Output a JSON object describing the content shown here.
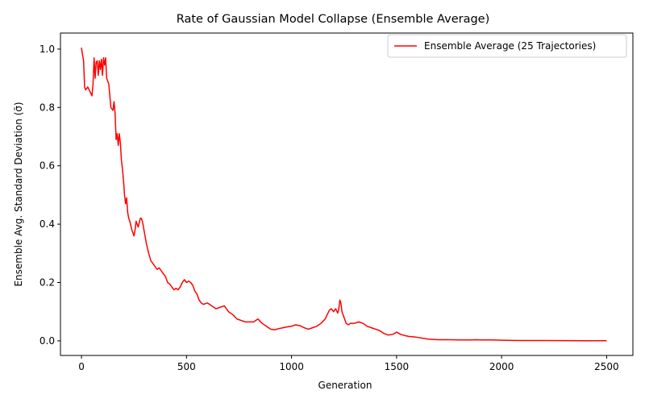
{
  "chart_data": {
    "type": "line",
    "title": "Rate of Gaussian Model Collapse (Ensemble Average)",
    "xlabel": "Generation",
    "ylabel": "Ensemble Avg. Standard Deviation (σ̄)",
    "xlim": [
      -100,
      2625
    ],
    "ylim": [
      -0.05,
      1.055
    ],
    "xticks": [
      0,
      500,
      1000,
      1500,
      2000,
      2500
    ],
    "xtick_labels": [
      "0",
      "500",
      "1000",
      "1500",
      "2000",
      "2500"
    ],
    "yticks": [
      0.0,
      0.2,
      0.4,
      0.6,
      0.8,
      1.0
    ],
    "ytick_labels": [
      "0.0",
      "0.2",
      "0.4",
      "0.6",
      "0.8",
      "1.0"
    ],
    "grid": false,
    "legend_position": "top-right",
    "series": [
      {
        "name": "Ensemble Average (25 Trajectories)",
        "color": "#ff0000",
        "x": [
          0,
          5,
          10,
          15,
          20,
          30,
          40,
          50,
          55,
          60,
          65,
          70,
          75,
          80,
          85,
          90,
          95,
          100,
          105,
          110,
          115,
          120,
          130,
          140,
          150,
          155,
          160,
          165,
          170,
          175,
          180,
          185,
          190,
          195,
          200,
          205,
          210,
          215,
          220,
          225,
          230,
          240,
          250,
          255,
          260,
          270,
          280,
          285,
          290,
          295,
          300,
          310,
          320,
          330,
          340,
          350,
          360,
          370,
          380,
          390,
          400,
          410,
          420,
          430,
          440,
          450,
          460,
          470,
          480,
          490,
          500,
          510,
          520,
          530,
          540,
          550,
          560,
          570,
          580,
          600,
          620,
          640,
          660,
          680,
          700,
          720,
          740,
          760,
          780,
          800,
          820,
          840,
          860,
          880,
          900,
          920,
          940,
          960,
          980,
          1000,
          1020,
          1040,
          1060,
          1080,
          1100,
          1120,
          1140,
          1160,
          1170,
          1180,
          1190,
          1200,
          1210,
          1220,
          1225,
          1230,
          1235,
          1240,
          1250,
          1260,
          1270,
          1280,
          1300,
          1320,
          1340,
          1360,
          1380,
          1400,
          1420,
          1440,
          1460,
          1480,
          1490,
          1500,
          1520,
          1540,
          1560,
          1580,
          1600,
          1650,
          1700,
          1750,
          1800,
          1850,
          1880,
          1900,
          1950,
          2000,
          2100,
          2200,
          2300,
          2400,
          2500
        ],
        "values": [
          1.005,
          0.98,
          0.96,
          0.87,
          0.86,
          0.87,
          0.855,
          0.84,
          0.88,
          0.97,
          0.9,
          0.955,
          0.96,
          0.91,
          0.96,
          0.93,
          0.965,
          0.91,
          0.97,
          0.945,
          0.97,
          0.9,
          0.88,
          0.8,
          0.79,
          0.82,
          0.78,
          0.69,
          0.71,
          0.67,
          0.71,
          0.68,
          0.62,
          0.59,
          0.55,
          0.5,
          0.47,
          0.49,
          0.44,
          0.42,
          0.41,
          0.38,
          0.36,
          0.38,
          0.41,
          0.39,
          0.42,
          0.42,
          0.41,
          0.39,
          0.37,
          0.33,
          0.3,
          0.275,
          0.265,
          0.255,
          0.245,
          0.25,
          0.24,
          0.23,
          0.22,
          0.2,
          0.195,
          0.185,
          0.175,
          0.18,
          0.175,
          0.185,
          0.2,
          0.21,
          0.2,
          0.205,
          0.2,
          0.19,
          0.17,
          0.16,
          0.14,
          0.13,
          0.125,
          0.13,
          0.12,
          0.11,
          0.115,
          0.12,
          0.1,
          0.09,
          0.075,
          0.07,
          0.065,
          0.065,
          0.065,
          0.075,
          0.06,
          0.05,
          0.04,
          0.038,
          0.042,
          0.045,
          0.048,
          0.05,
          0.055,
          0.052,
          0.045,
          0.04,
          0.045,
          0.05,
          0.06,
          0.075,
          0.09,
          0.105,
          0.11,
          0.1,
          0.11,
          0.095,
          0.11,
          0.14,
          0.13,
          0.1,
          0.08,
          0.06,
          0.055,
          0.06,
          0.06,
          0.065,
          0.06,
          0.05,
          0.045,
          0.04,
          0.035,
          0.025,
          0.02,
          0.022,
          0.025,
          0.03,
          0.022,
          0.018,
          0.015,
          0.014,
          0.012,
          0.006,
          0.004,
          0.004,
          0.003,
          0.003,
          0.004,
          0.003,
          0.003,
          0.002,
          0.001,
          0.001,
          0.0008,
          0.0005,
          0.0003
        ]
      }
    ]
  }
}
